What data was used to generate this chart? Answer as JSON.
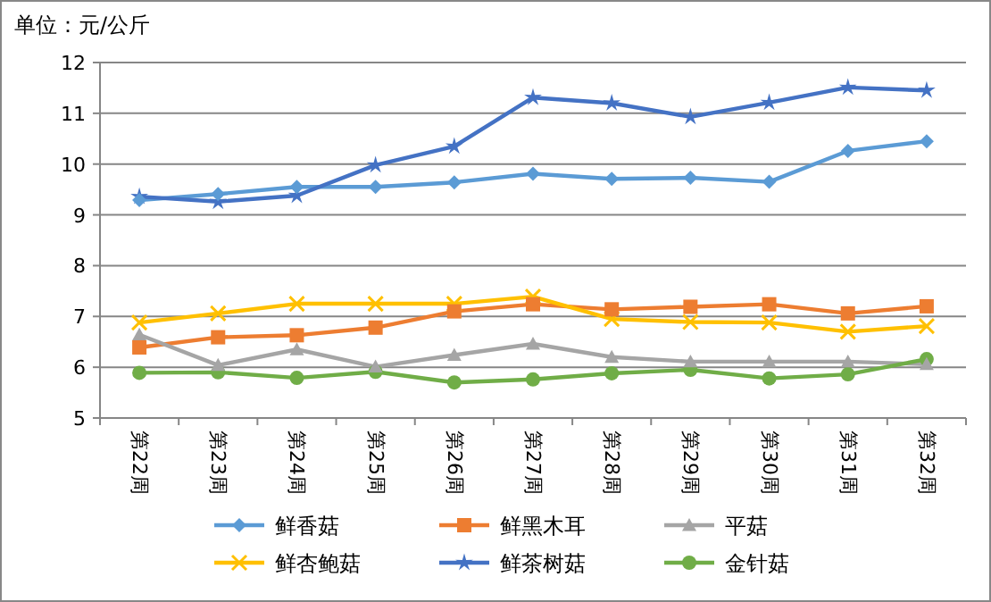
{
  "chart_data": {
    "type": "line",
    "ylabel": "单位：元/公斤",
    "categories": [
      "第22周",
      "第23周",
      "第24周",
      "第25周",
      "第26周",
      "第27周",
      "第28周",
      "第29周",
      "第30周",
      "第31周",
      "第32周"
    ],
    "ylim": [
      5,
      12
    ],
    "yticks": [
      5,
      6,
      7,
      8,
      9,
      10,
      11,
      12
    ],
    "grid": "y",
    "legend": "bottom",
    "series": [
      {
        "name": "鲜香菇",
        "color": "#5b9bd5",
        "marker": "diamond",
        "values": [
          9.29,
          9.41,
          9.55,
          9.55,
          9.64,
          9.81,
          9.71,
          9.73,
          9.65,
          10.26,
          10.45
        ]
      },
      {
        "name": "鲜黑木耳",
        "color": "#ed7d31",
        "marker": "square",
        "values": [
          6.39,
          6.59,
          6.63,
          6.78,
          7.1,
          7.24,
          7.14,
          7.19,
          7.24,
          7.06,
          7.2
        ]
      },
      {
        "name": "平菇",
        "color": "#a5a5a5",
        "marker": "triangle",
        "values": [
          6.64,
          6.04,
          6.35,
          6.01,
          6.24,
          6.46,
          6.2,
          6.11,
          6.11,
          6.11,
          6.06
        ]
      },
      {
        "name": "鲜杏鲍菇",
        "color": "#ffc000",
        "marker": "cross",
        "values": [
          6.88,
          7.06,
          7.25,
          7.25,
          7.25,
          7.39,
          6.95,
          6.89,
          6.88,
          6.7,
          6.81
        ]
      },
      {
        "name": "鲜茶树菇",
        "color": "#4472c4",
        "marker": "star",
        "values": [
          9.36,
          9.26,
          9.38,
          9.98,
          10.35,
          11.31,
          11.2,
          10.93,
          11.21,
          11.51,
          11.45
        ]
      },
      {
        "name": "金针菇",
        "color": "#70ad47",
        "marker": "circle",
        "values": [
          5.89,
          5.9,
          5.79,
          5.91,
          5.7,
          5.76,
          5.88,
          5.95,
          5.78,
          5.86,
          6.16
        ]
      }
    ]
  }
}
